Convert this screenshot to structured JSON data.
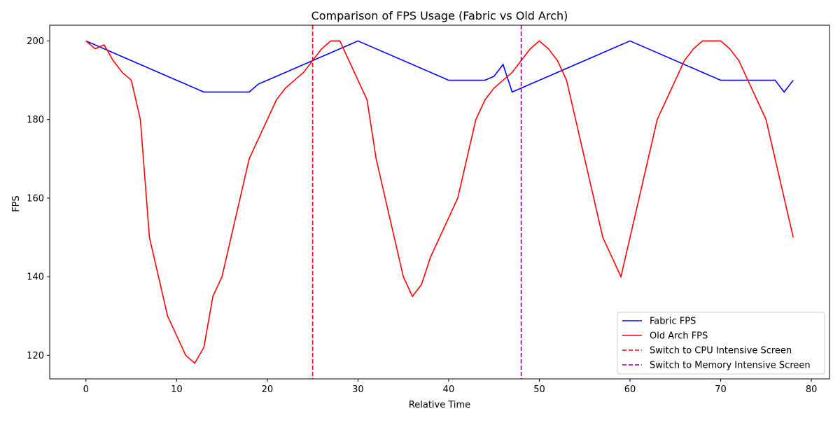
{
  "chart_data": {
    "type": "line",
    "title": "Comparison of FPS Usage (Fabric vs Old Arch)",
    "xlabel": "Relative Time",
    "ylabel": "FPS",
    "xlim": [
      -4,
      82
    ],
    "ylim": [
      114,
      204
    ],
    "xticks": [
      0,
      10,
      20,
      30,
      40,
      50,
      60,
      70,
      80
    ],
    "yticks": [
      120,
      140,
      160,
      180,
      200
    ],
    "grid": false,
    "legend_position": "lower-right",
    "series": [
      {
        "name": "Fabric FPS",
        "color": "#0000ff",
        "style": "solid",
        "x": [
          0,
          13,
          18,
          19,
          30,
          40,
          44,
          45,
          46,
          47,
          60,
          70,
          76,
          77,
          78
        ],
        "y": [
          200,
          187,
          187,
          189,
          200,
          190,
          190,
          191,
          194,
          187,
          200,
          190,
          190,
          187,
          190
        ]
      },
      {
        "name": "Old Arch FPS",
        "color": "#ff0000",
        "style": "solid",
        "x": [
          0,
          1,
          2,
          3,
          4,
          5,
          6,
          7,
          8,
          9,
          10,
          11,
          12,
          13,
          14,
          15,
          16,
          17,
          18,
          19,
          20,
          21,
          22,
          23,
          24,
          25,
          26,
          27,
          28,
          29,
          30,
          31,
          32,
          33,
          34,
          35,
          36,
          37,
          38,
          39,
          40,
          41,
          42,
          43,
          44,
          45,
          46,
          47,
          48,
          49,
          50,
          51,
          52,
          53,
          54,
          55,
          56,
          57,
          58,
          59,
          60,
          61,
          62,
          63,
          64,
          65,
          66,
          67,
          68,
          69,
          70,
          71,
          72,
          73,
          74,
          75,
          76,
          77,
          78
        ],
        "y": [
          200,
          198,
          199,
          195,
          192,
          190,
          180,
          150,
          140,
          130,
          125,
          120,
          118,
          122,
          135,
          140,
          150,
          160,
          170,
          175,
          180,
          185,
          188,
          190,
          192,
          195,
          198,
          200,
          200,
          195,
          190,
          185,
          170,
          160,
          150,
          140,
          135,
          138,
          145,
          150,
          155,
          160,
          170,
          180,
          185,
          188,
          190,
          192,
          195,
          198,
          200,
          198,
          195,
          190,
          180,
          170,
          160,
          150,
          145,
          140,
          150,
          160,
          170,
          180,
          185,
          190,
          195,
          198,
          200,
          200,
          200,
          198,
          195,
          190,
          185,
          180,
          170,
          160,
          150
        ]
      }
    ],
    "vlines": [
      {
        "x": 25,
        "color": "#ff0000",
        "style": "dashed",
        "name": "Switch to CPU Intensive Screen"
      },
      {
        "x": 48,
        "color": "#800080",
        "style": "dashed",
        "name": "Switch to Memory Intensive Screen"
      }
    ]
  }
}
